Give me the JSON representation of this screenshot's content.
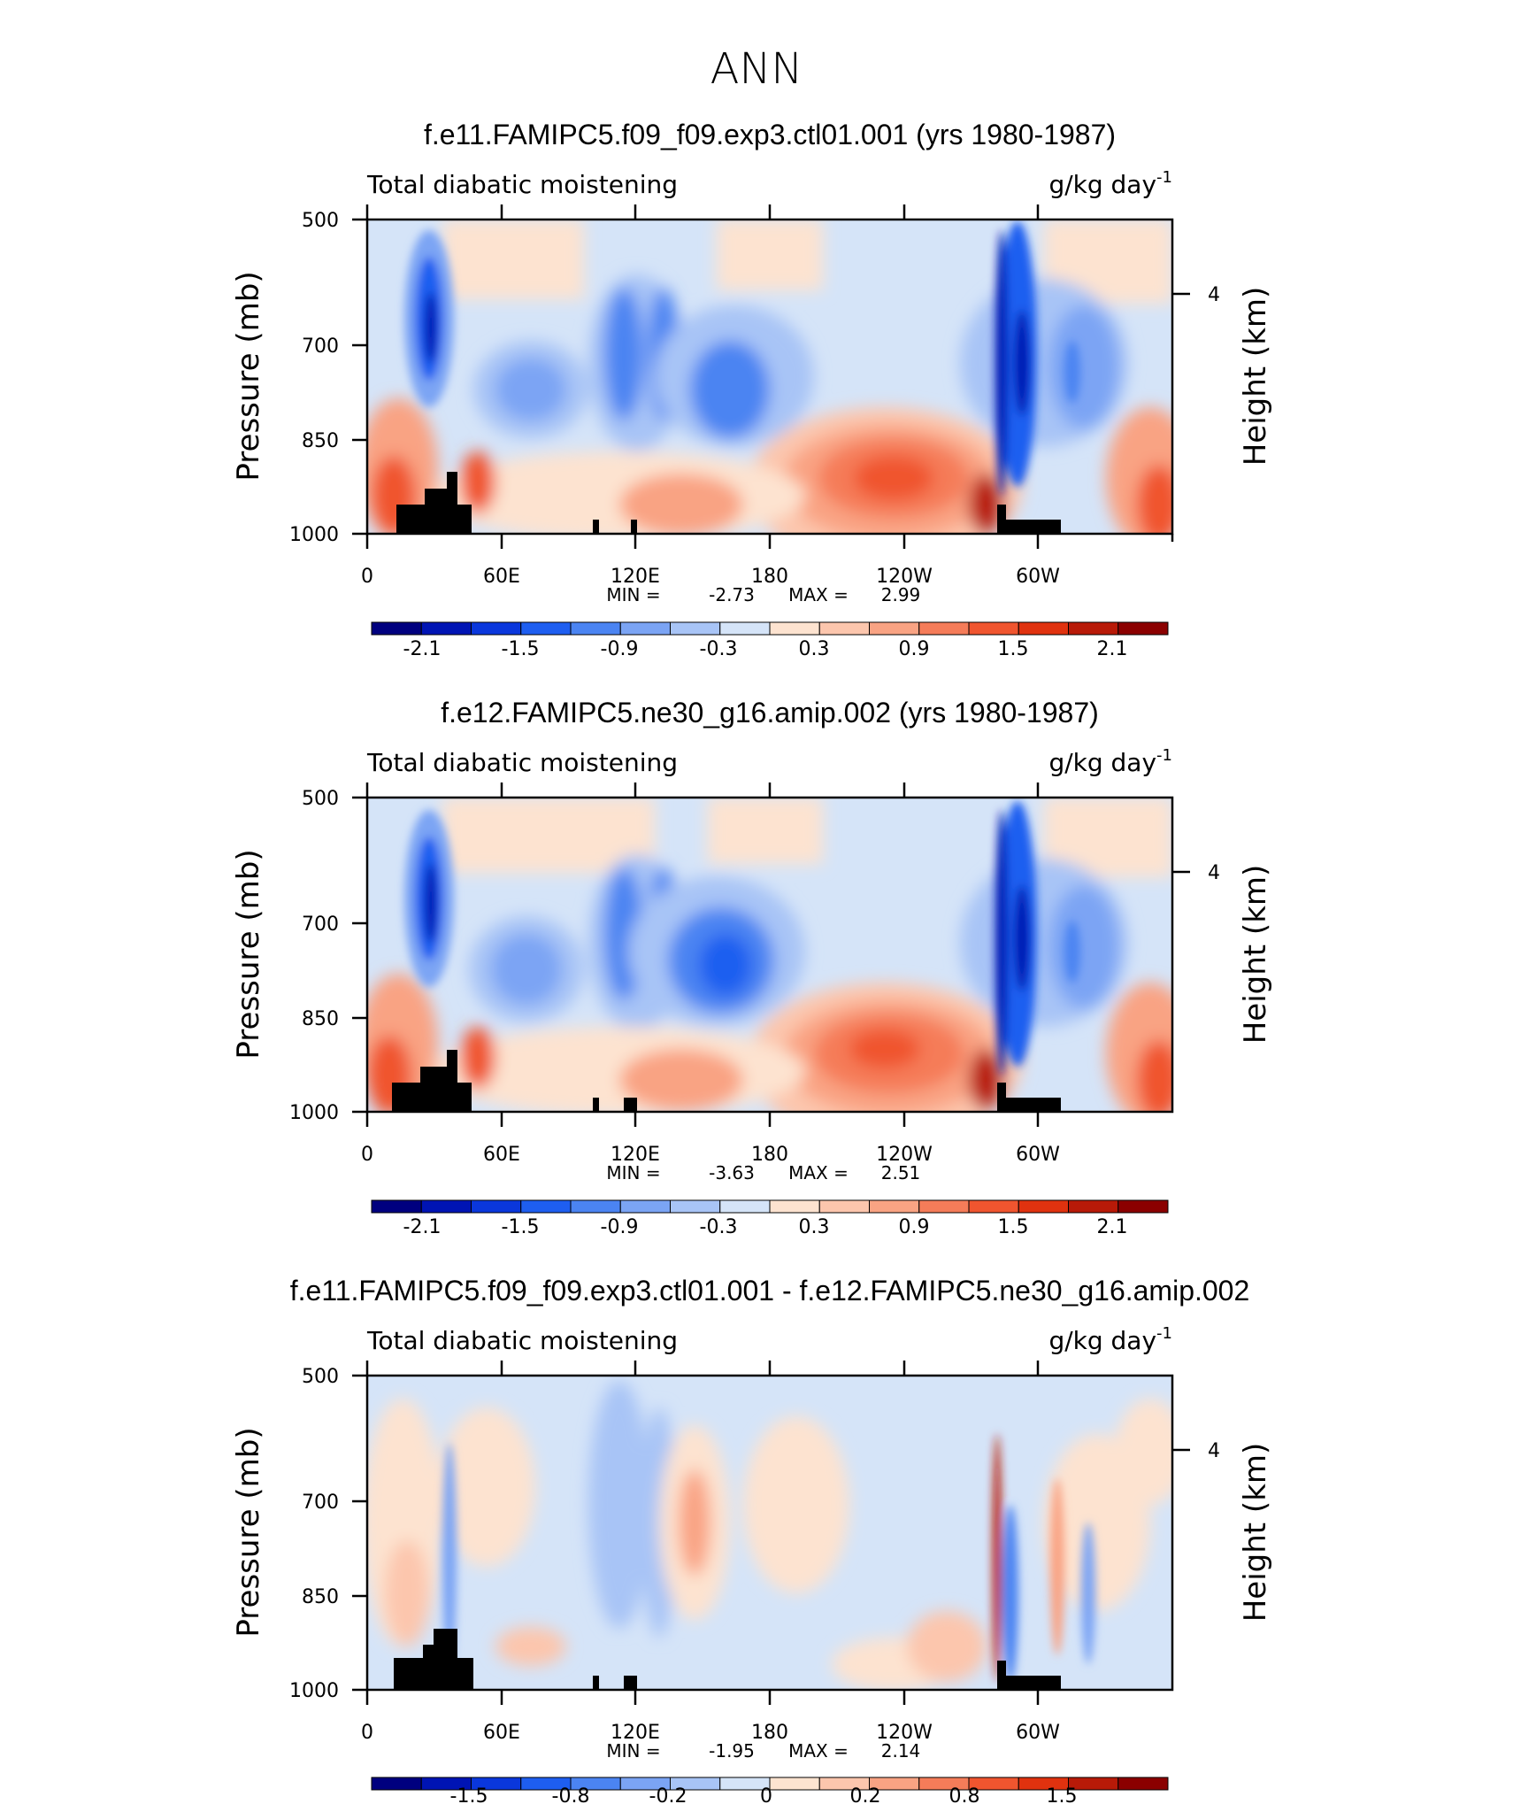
{
  "figure_title": "ANN",
  "panels": [
    {
      "title": "f.e11.FAMIPC5.f09_f09.exp3.ctl01.001 (yrs 1980-1987)",
      "left_label": "Total diabatic moistening",
      "right_label": "g/kg day",
      "units_exponent": "-1",
      "ylabel": "Pressure (mb)",
      "ylabel_right": "Height (km)",
      "min_label": "MIN =",
      "min_value": "-2.73",
      "max_label": "MAX =",
      "max_value": "2.99",
      "colorbar_labels": [
        "-2.1",
        "-1.5",
        "-0.9",
        "-0.3",
        "0.3",
        "0.9",
        "1.5",
        "2.1"
      ]
    },
    {
      "title": "f.e12.FAMIPC5.ne30_g16.amip.002 (yrs 1980-1987)",
      "left_label": "Total diabatic moistening",
      "right_label": "g/kg day",
      "units_exponent": "-1",
      "ylabel": "Pressure (mb)",
      "ylabel_right": "Height (km)",
      "min_label": "MIN =",
      "min_value": "-3.63",
      "max_label": "MAX =",
      "max_value": "2.51",
      "colorbar_labels": [
        "-2.1",
        "-1.5",
        "-0.9",
        "-0.3",
        "0.3",
        "0.9",
        "1.5",
        "2.1"
      ]
    },
    {
      "title": "f.e11.FAMIPC5.f09_f09.exp3.ctl01.001 - f.e12.FAMIPC5.ne30_g16.amip.002",
      "left_label": "Total diabatic moistening",
      "right_label": "g/kg day",
      "units_exponent": "-1",
      "ylabel": "Pressure (mb)",
      "ylabel_right": "Height (km)",
      "min_label": "MIN =",
      "min_value": "-1.95",
      "max_label": "MAX =",
      "max_value": "2.14",
      "colorbar_labels": [
        "-1.5",
        "-0.8",
        "-0.2",
        "0",
        "0.2",
        "0.8",
        "1.5"
      ]
    }
  ],
  "axes": {
    "xtick_labels": [
      "0",
      "60E",
      "120E",
      "180",
      "120W",
      "60W"
    ],
    "ytick_labels": [
      "500",
      "700",
      "850",
      "1000"
    ],
    "right_tick_labels": [
      "4"
    ]
  },
  "colors": {
    "colorbar": [
      "#00007f",
      "#0014b4",
      "#0a37dc",
      "#1e5ef0",
      "#4b84f2",
      "#7ba4f4",
      "#a8c4f6",
      "#d5e4f8",
      "#fde3d0",
      "#fcc6ad",
      "#f9a383",
      "#f57c59",
      "#f0552f",
      "#e0320f",
      "#b81a08",
      "#8b0000"
    ],
    "topography": "#000000"
  },
  "chart_data": [
    {
      "type": "heatmap",
      "title": "f.e11.FAMIPC5.f09_f09.exp3.ctl01.001 (yrs 1980-1987)",
      "xlabel": "",
      "ylabel": "Pressure (mb)",
      "x_ticks": [
        "0",
        "60E",
        "120E",
        "180",
        "120W",
        "60W"
      ],
      "y_ticks": [
        500,
        700,
        850,
        1000
      ],
      "right_axis": {
        "label": "Height (km)",
        "ticks": [
          4
        ]
      },
      "min": -2.73,
      "max": 2.99,
      "colorbar_levels": [
        -2.1,
        -1.5,
        -0.9,
        -0.3,
        0.3,
        0.9,
        1.5,
        2.1
      ],
      "features": [
        {
          "lon": 30,
          "p_top": 540,
          "p_bottom": 820,
          "value": -1.6
        },
        {
          "lon": 20,
          "p_top": 830,
          "p_bottom": 990,
          "value": 1.0
        },
        {
          "lon": 62,
          "p_top": 680,
          "p_bottom": 780,
          "value": -0.8
        },
        {
          "lon": 105,
          "p_top": 640,
          "p_bottom": 860,
          "value": -0.9
        },
        {
          "lon": 160,
          "p_top": 680,
          "p_bottom": 830,
          "value": -1.2
        },
        {
          "lon": 235,
          "p_top": 850,
          "p_bottom": 1000,
          "value": 1.4
        },
        {
          "lon": 291,
          "p_top": 510,
          "p_bottom": 980,
          "value": -2.2
        },
        {
          "lon": 355,
          "p_top": 840,
          "p_bottom": 1000,
          "value": 1.0
        }
      ]
    },
    {
      "type": "heatmap",
      "title": "f.e12.FAMIPC5.ne30_g16.amip.002 (yrs 1980-1987)",
      "xlabel": "",
      "ylabel": "Pressure (mb)",
      "x_ticks": [
        "0",
        "60E",
        "120E",
        "180",
        "120W",
        "60W"
      ],
      "y_ticks": [
        500,
        700,
        850,
        1000
      ],
      "right_axis": {
        "label": "Height (km)",
        "ticks": [
          4
        ]
      },
      "min": -3.63,
      "max": 2.51,
      "colorbar_levels": [
        -2.1,
        -1.5,
        -0.9,
        -0.3,
        0.3,
        0.9,
        1.5,
        2.1
      ],
      "features": [
        {
          "lon": 30,
          "p_top": 540,
          "p_bottom": 820,
          "value": -1.8
        },
        {
          "lon": 20,
          "p_top": 830,
          "p_bottom": 990,
          "value": 1.1
        },
        {
          "lon": 62,
          "p_top": 680,
          "p_bottom": 790,
          "value": -0.8
        },
        {
          "lon": 105,
          "p_top": 640,
          "p_bottom": 860,
          "value": -1.0
        },
        {
          "lon": 155,
          "p_top": 680,
          "p_bottom": 840,
          "value": -1.4
        },
        {
          "lon": 235,
          "p_top": 840,
          "p_bottom": 1000,
          "value": 1.3
        },
        {
          "lon": 291,
          "p_top": 510,
          "p_bottom": 980,
          "value": -2.4
        },
        {
          "lon": 355,
          "p_top": 840,
          "p_bottom": 1000,
          "value": 1.2
        }
      ]
    },
    {
      "type": "heatmap",
      "title": "f.e11.FAMIPC5.f09_f09.exp3.ctl01.001 - f.e12.FAMIPC5.ne30_g16.amip.002",
      "xlabel": "",
      "ylabel": "Pressure (mb)",
      "x_ticks": [
        "0",
        "60E",
        "120E",
        "180",
        "120W",
        "60W"
      ],
      "y_ticks": [
        500,
        700,
        850,
        1000
      ],
      "right_axis": {
        "label": "Height (km)",
        "ticks": [
          4
        ]
      },
      "min": -1.95,
      "max": 2.14,
      "colorbar_levels": [
        -1.5,
        -0.8,
        -0.2,
        0,
        0.2,
        0.8,
        1.5
      ],
      "features": [
        {
          "lon": 15,
          "p_top": 600,
          "p_bottom": 980,
          "value": 0.4
        },
        {
          "lon": 38,
          "p_top": 550,
          "p_bottom": 1000,
          "value": -0.5
        },
        {
          "lon": 100,
          "p_top": 520,
          "p_bottom": 1000,
          "value": -0.5
        },
        {
          "lon": 145,
          "p_top": 650,
          "p_bottom": 900,
          "value": 0.8
        },
        {
          "lon": 288,
          "p_top": 600,
          "p_bottom": 900,
          "value": 1.6
        },
        {
          "lon": 355,
          "p_top": 600,
          "p_bottom": 800,
          "value": 0.3
        }
      ]
    }
  ]
}
